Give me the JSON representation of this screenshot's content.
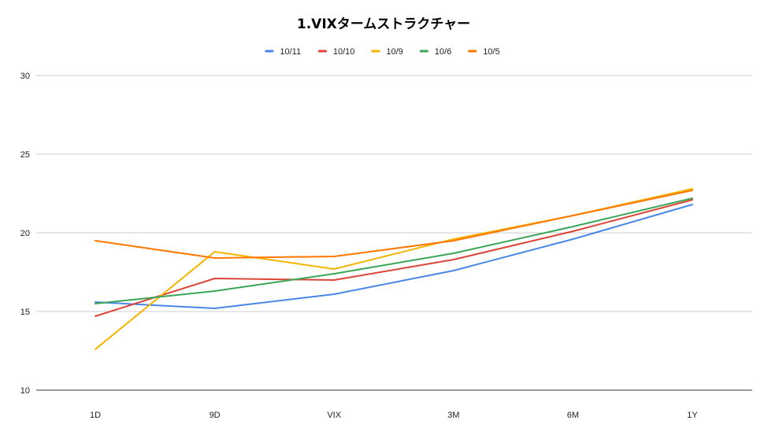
{
  "chart_data": {
    "type": "line",
    "title": "1.VIXタームストラクチャー",
    "xlabel": "",
    "ylabel": "",
    "categories": [
      "1D",
      "9D",
      "VIX",
      "3M",
      "6M",
      "1Y"
    ],
    "ylim": [
      10,
      30
    ],
    "yticks": [
      "30",
      "25",
      "20",
      "15",
      "10"
    ],
    "grid": true,
    "legend_position": "top",
    "series": [
      {
        "name": "10/11",
        "color": "#4a86e8",
        "values": [
          15.6,
          15.2,
          16.1,
          17.6,
          19.6,
          21.8
        ]
      },
      {
        "name": "10/10",
        "color": "#db4437",
        "values": [
          14.7,
          17.1,
          17.0,
          18.3,
          20.1,
          22.1
        ]
      },
      {
        "name": "10/9",
        "color": "#f4b400",
        "values": [
          12.6,
          18.8,
          17.7,
          19.6,
          21.1,
          22.8
        ]
      },
      {
        "name": "10/6",
        "color": "#3aa655",
        "values": [
          15.5,
          16.3,
          17.4,
          18.7,
          20.4,
          22.2
        ]
      },
      {
        "name": "10/5",
        "color": "#ff7800",
        "values": [
          19.5,
          18.4,
          18.5,
          19.5,
          21.1,
          22.7
        ]
      }
    ]
  }
}
